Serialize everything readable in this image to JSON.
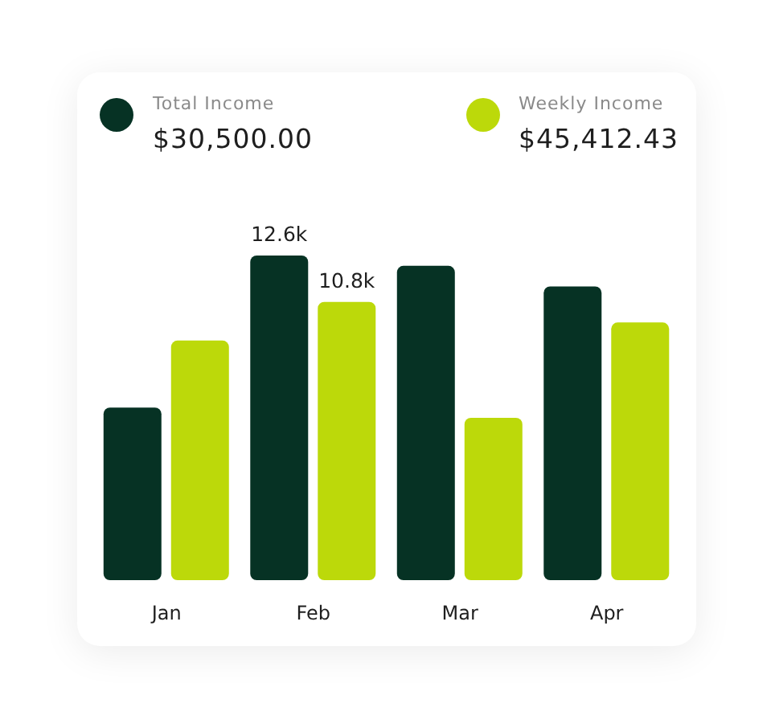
{
  "chart_data": {
    "type": "bar",
    "categories": [
      "Jan",
      "Feb",
      "Mar",
      "Apr"
    ],
    "series": [
      {
        "name": "Total Income",
        "color": "#063224",
        "values": [
          6.7,
          12.6,
          12.2,
          11.4
        ],
        "value_labels": [
          null,
          "12.6k",
          null,
          null
        ]
      },
      {
        "name": "Weekly Income",
        "color": "#bcd90a",
        "values": [
          9.3,
          10.8,
          6.3,
          10.0
        ],
        "value_labels": [
          null,
          "10.8k",
          null,
          null
        ]
      }
    ],
    "annotations": [
      "$30,500.00",
      "$45,412.43"
    ],
    "legend": "top"
  }
}
